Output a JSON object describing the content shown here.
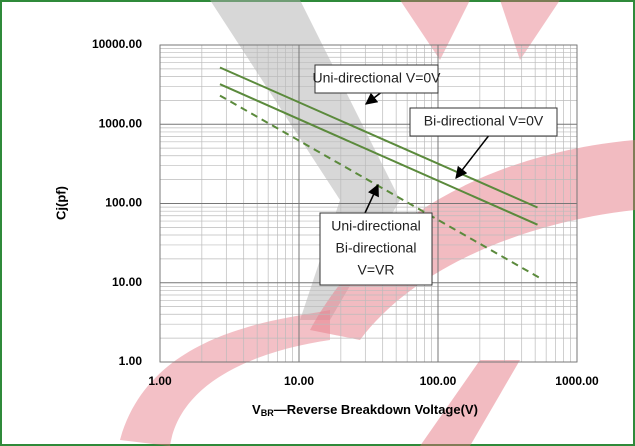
{
  "chart_data": {
    "type": "line",
    "log_x": true,
    "log_y": true,
    "grid": true,
    "ylabel": "Cj(pf)",
    "xlabel": [
      "V",
      "BR",
      "—Reverse Breakdown Voltage(V)"
    ],
    "xlim": [
      1,
      1000
    ],
    "xticks": [
      {
        "value": 1,
        "label": "1.00"
      },
      {
        "value": 10,
        "label": "10.00"
      },
      {
        "value": 100,
        "label": "100.00"
      },
      {
        "value": 1000,
        "label": "1000.00"
      }
    ],
    "ylim": [
      1,
      10000
    ],
    "yticks": [
      {
        "value": 1,
        "label": "1.00"
      },
      {
        "value": 10,
        "label": "10.00"
      },
      {
        "value": 100,
        "label": "100.00"
      },
      {
        "value": 1000,
        "label": "1000.00"
      },
      {
        "value": 10000,
        "label": "10000.00"
      }
    ],
    "series": [
      {
        "color": "#5b8a3c",
        "dashed": false,
        "x": [
          2.7,
          520
        ],
        "values": [
          5200,
          89
        ]
      },
      {
        "color": "#5b8a3c",
        "dashed": false,
        "x": [
          2.7,
          520
        ],
        "values": [
          3200,
          54
        ]
      },
      {
        "color": "#5b8a3c",
        "dashed": true,
        "x": [
          2.7,
          540
        ],
        "values": [
          2300,
          11.5
        ]
      }
    ],
    "annotations": [
      {
        "lines": [
          "Uni-directional V=0V"
        ]
      },
      {
        "lines": [
          "Bi-directional V=0V"
        ]
      },
      {
        "lines": [
          "Uni-directional",
          "Bi-directional",
          "V=VR"
        ]
      }
    ]
  }
}
